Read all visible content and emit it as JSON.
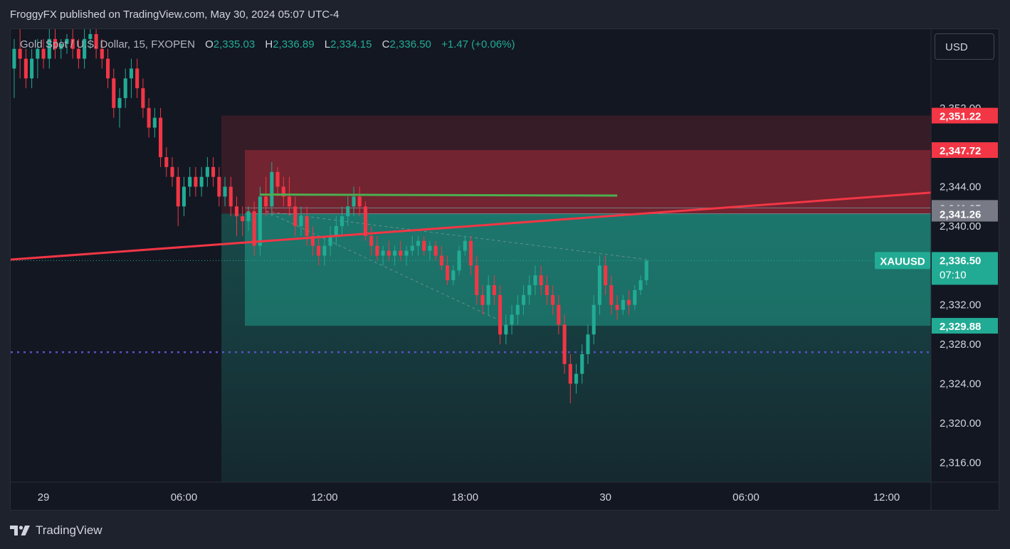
{
  "header": {
    "published": "FroggyFX published on TradingView.com, May 30, 2024 05:07 UTC-4"
  },
  "legend": {
    "symbol": "Gold Spot / U.S. Dollar, 15, FXOPEN",
    "o_label": "O",
    "o": "2,335.03",
    "h_label": "H",
    "h": "2,336.89",
    "l_label": "L",
    "l": "2,334.15",
    "c_label": "C",
    "c": "2,336.50",
    "change": "+1.47 (+0.06%)"
  },
  "currency_button": "USD",
  "footer": {
    "brand": "TradingView",
    "logo": "tradingview-logo"
  },
  "colors": {
    "bull": "#22ab94",
    "bear": "#f23645",
    "trendline": "#f23645",
    "resistance": "#4caf50",
    "level_line": "#673ab7",
    "stop_zone": "#f23645",
    "target_zone": "#22ab94"
  },
  "chart_data": {
    "type": "candlestick",
    "symbol": "XAUUSD",
    "timeframe": "15",
    "ylim": [
      2314,
      2360
    ],
    "y_ticks": [
      "2,352.00",
      "2,344.00",
      "2,340.00",
      "2,332.00",
      "2,328.00",
      "2,324.00",
      "2,320.00",
      "2,316.00"
    ],
    "y_tick_values": [
      2352,
      2344,
      2340,
      2332,
      2328,
      2324,
      2320,
      2316
    ],
    "x_ticks": [
      "29",
      "06:00",
      "12:00",
      "18:00",
      "30",
      "06:00",
      "12:00"
    ],
    "x_tick_hours": [
      0,
      6,
      12,
      18,
      24,
      30,
      36
    ],
    "x_range_hours": [
      -1.4,
      37.9
    ],
    "candles": [
      [
        -1.25,
        2356,
        2359,
        2353,
        2358
      ],
      [
        -1.0,
        2358,
        2360,
        2355,
        2357
      ],
      [
        -0.75,
        2357,
        2358,
        2354,
        2355
      ],
      [
        -0.5,
        2355,
        2358,
        2354,
        2357
      ],
      [
        -0.25,
        2357,
        2359,
        2355,
        2358
      ],
      [
        0.0,
        2358,
        2359,
        2356,
        2357
      ],
      [
        0.25,
        2357,
        2360,
        2356,
        2359
      ],
      [
        0.5,
        2359,
        2360,
        2357,
        2358
      ],
      [
        0.75,
        2358,
        2359,
        2357,
        2358.5
      ],
      [
        1.0,
        2358.5,
        2359.5,
        2357.5,
        2359
      ],
      [
        1.25,
        2359,
        2360,
        2357,
        2358
      ],
      [
        1.5,
        2358,
        2359,
        2356,
        2357
      ],
      [
        1.75,
        2357,
        2360,
        2356,
        2359
      ],
      [
        2.0,
        2359,
        2360,
        2358,
        2359.5
      ],
      [
        2.25,
        2359.5,
        2360,
        2357,
        2358
      ],
      [
        2.5,
        2358,
        2359,
        2356,
        2357
      ],
      [
        2.75,
        2357,
        2358,
        2354,
        2355
      ],
      [
        3.0,
        2355,
        2356,
        2351,
        2352
      ],
      [
        3.25,
        2352,
        2354,
        2350,
        2353
      ],
      [
        3.5,
        2353,
        2356,
        2352,
        2355
      ],
      [
        3.75,
        2355,
        2357,
        2353,
        2356
      ],
      [
        4.0,
        2356,
        2357,
        2353,
        2354
      ],
      [
        4.25,
        2354,
        2355,
        2351,
        2352
      ],
      [
        4.5,
        2352,
        2353,
        2349,
        2350
      ],
      [
        4.75,
        2350,
        2352,
        2349,
        2351
      ],
      [
        5.0,
        2351,
        2352,
        2346,
        2347
      ],
      [
        5.25,
        2347,
        2348,
        2345,
        2346
      ],
      [
        5.5,
        2346,
        2347,
        2344,
        2345
      ],
      [
        5.75,
        2345,
        2346,
        2340,
        2342
      ],
      [
        6.0,
        2342,
        2345,
        2341,
        2344
      ],
      [
        6.25,
        2344,
        2346,
        2343,
        2345
      ],
      [
        6.5,
        2345,
        2346,
        2343,
        2344
      ],
      [
        6.75,
        2344,
        2346,
        2343,
        2345
      ],
      [
        7.0,
        2345,
        2347,
        2344,
        2346
      ],
      [
        7.25,
        2346,
        2347,
        2344,
        2345
      ],
      [
        7.5,
        2345,
        2346,
        2342,
        2343
      ],
      [
        7.75,
        2343,
        2345,
        2342,
        2344
      ],
      [
        8.0,
        2344,
        2345,
        2341,
        2342
      ],
      [
        8.25,
        2342,
        2343,
        2339,
        2341
      ],
      [
        8.5,
        2341,
        2342,
        2339,
        2340.5
      ],
      [
        8.75,
        2340.5,
        2342,
        2339.5,
        2341.5
      ],
      [
        9.0,
        2341.5,
        2342.5,
        2337,
        2338
      ],
      [
        9.25,
        2338,
        2344,
        2337,
        2343
      ],
      [
        9.5,
        2343,
        2345,
        2341,
        2342
      ],
      [
        9.75,
        2342,
        2346.5,
        2341,
        2345.5
      ],
      [
        10.0,
        2345.5,
        2346,
        2343,
        2344
      ],
      [
        10.25,
        2344,
        2345,
        2342,
        2343
      ],
      [
        10.5,
        2343,
        2345,
        2341,
        2342
      ],
      [
        10.75,
        2342,
        2343,
        2339,
        2340
      ],
      [
        11.0,
        2340,
        2342,
        2339,
        2341
      ],
      [
        11.25,
        2341,
        2342,
        2338,
        2339
      ],
      [
        11.5,
        2339,
        2340,
        2337,
        2338
      ],
      [
        11.75,
        2338,
        2339,
        2336,
        2337
      ],
      [
        12.0,
        2337,
        2339,
        2336,
        2338
      ],
      [
        12.25,
        2338,
        2340,
        2337,
        2339
      ],
      [
        12.5,
        2339,
        2341,
        2338,
        2340
      ],
      [
        12.75,
        2340,
        2342,
        2339,
        2341
      ],
      [
        13.0,
        2341,
        2343,
        2340,
        2342
      ],
      [
        13.25,
        2342,
        2344,
        2341,
        2343
      ],
      [
        13.5,
        2343,
        2344,
        2341,
        2342
      ],
      [
        13.75,
        2342,
        2342.5,
        2338.5,
        2339
      ],
      [
        14.0,
        2339,
        2340,
        2337,
        2338
      ],
      [
        14.25,
        2338,
        2339,
        2336.5,
        2337
      ],
      [
        14.5,
        2337,
        2338,
        2336,
        2337.5
      ],
      [
        14.75,
        2337.5,
        2338.5,
        2336.5,
        2337
      ],
      [
        15.0,
        2337,
        2338,
        2336,
        2337.5
      ],
      [
        15.25,
        2337.5,
        2338.5,
        2336.5,
        2337
      ],
      [
        15.5,
        2337,
        2338,
        2336,
        2337.5
      ],
      [
        15.75,
        2337.5,
        2339,
        2337,
        2338
      ],
      [
        16.0,
        2338,
        2339,
        2337,
        2338.5
      ],
      [
        16.25,
        2338.5,
        2339,
        2337,
        2337.5
      ],
      [
        16.5,
        2337.5,
        2338.5,
        2336.5,
        2338
      ],
      [
        16.75,
        2338,
        2338.5,
        2336.5,
        2337
      ],
      [
        17.0,
        2337,
        2338,
        2335.5,
        2336
      ],
      [
        17.25,
        2336,
        2337,
        2334,
        2334.5
      ],
      [
        17.5,
        2334.5,
        2336,
        2334,
        2335.5
      ],
      [
        17.75,
        2335.5,
        2338,
        2335,
        2337.5
      ],
      [
        18.0,
        2337.5,
        2339,
        2337,
        2338.5
      ],
      [
        18.25,
        2338.5,
        2339,
        2335,
        2336
      ],
      [
        18.5,
        2336,
        2337,
        2332,
        2333
      ],
      [
        18.75,
        2333,
        2334,
        2331,
        2332
      ],
      [
        19.0,
        2332,
        2335,
        2331,
        2334
      ],
      [
        19.25,
        2334,
        2335,
        2332,
        2333
      ],
      [
        19.5,
        2333,
        2334,
        2328,
        2329
      ],
      [
        19.75,
        2329,
        2331,
        2328,
        2330
      ],
      [
        20.0,
        2330,
        2332,
        2329,
        2331
      ],
      [
        20.25,
        2331,
        2333,
        2330,
        2332
      ],
      [
        20.5,
        2332,
        2334,
        2331,
        2333
      ],
      [
        20.75,
        2333,
        2335,
        2332,
        2334
      ],
      [
        21.0,
        2334,
        2336,
        2333,
        2335
      ],
      [
        21.25,
        2335,
        2336,
        2333,
        2334
      ],
      [
        21.5,
        2334,
        2335,
        2332,
        2333
      ],
      [
        21.75,
        2333,
        2334,
        2331,
        2332
      ],
      [
        22.0,
        2332,
        2333,
        2329,
        2330
      ],
      [
        22.25,
        2330,
        2331,
        2325,
        2326
      ],
      [
        22.5,
        2326,
        2327,
        2322,
        2324
      ],
      [
        22.75,
        2324,
        2326,
        2323,
        2325
      ],
      [
        23.0,
        2325,
        2328,
        2324,
        2327
      ],
      [
        23.25,
        2327,
        2330,
        2326,
        2329
      ],
      [
        23.5,
        2329,
        2333,
        2328,
        2332
      ],
      [
        23.75,
        2332,
        2337,
        2331,
        2336
      ],
      [
        24.0,
        2336,
        2337,
        2333,
        2334
      ],
      [
        24.25,
        2334,
        2335,
        2331,
        2332
      ],
      [
        24.5,
        2332,
        2333,
        2330.5,
        2331.5
      ],
      [
        24.75,
        2331.5,
        2333,
        2331,
        2332.5
      ],
      [
        25.0,
        2332.5,
        2333.5,
        2331,
        2332
      ],
      [
        25.25,
        2332,
        2334,
        2331.5,
        2333.5
      ],
      [
        25.5,
        2333.5,
        2335,
        2333,
        2334.5
      ],
      [
        25.75,
        2334.5,
        2336.5,
        2334,
        2336.5
      ]
    ],
    "zones": {
      "stop_outer": {
        "top": 2351.22,
        "bottom": 2341.26
      },
      "stop_inner": {
        "top": 2347.72,
        "bottom": 2341.26
      },
      "target": {
        "top": 2341.26,
        "bottom": 2329.88
      },
      "target_extended": {
        "top": 2341.26,
        "bottom": 2314
      }
    },
    "trendline": {
      "from": [
        -1.4,
        2336.6
      ],
      "to": [
        37.9,
        2343.4
      ]
    },
    "resistance_line": {
      "from": [
        9.25,
        2343.2
      ],
      "to": [
        24.5,
        2343.1
      ]
    },
    "dotted_level": 2327.2,
    "price_labels": [
      {
        "text": "2,351.22",
        "value": 2351.22,
        "color": "#f23645"
      },
      {
        "text": "2,347.72",
        "value": 2347.72,
        "color": "#f23645"
      },
      {
        "text": "2,341.85",
        "value": 2341.85,
        "color": "#787b86"
      },
      {
        "text": "2,341.26",
        "value": 2341.26,
        "color": "#787b86"
      },
      {
        "text": "2,329.88",
        "value": 2329.88,
        "color": "#22ab94"
      }
    ],
    "current_price": {
      "symbol": "XAUUSD",
      "value": 2336.5,
      "text": "2,336.50",
      "countdown": "07:10"
    }
  }
}
